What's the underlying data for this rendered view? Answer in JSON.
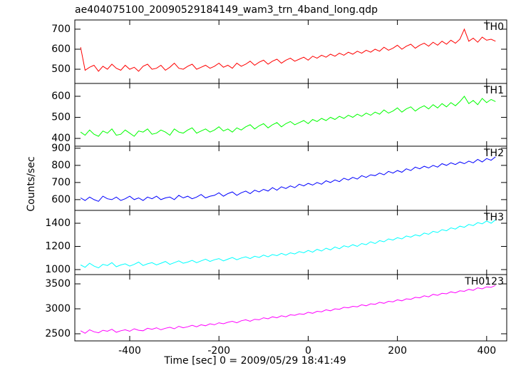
{
  "chart_data": {
    "type": "line",
    "title": "ae404075100_20090529184149_wam3_trn_4band_long.qdp",
    "xlabel": "Time [sec] 0 = 2009/05/29 18:41:49",
    "ylabel": "Counts/sec",
    "xlim": [
      -523,
      445
    ],
    "xticks": [
      -400,
      -200,
      0,
      200,
      400
    ],
    "x": [
      -510,
      -500,
      -490,
      -480,
      -470,
      -460,
      -450,
      -440,
      -430,
      -420,
      -410,
      -400,
      -390,
      -380,
      -370,
      -360,
      -350,
      -340,
      -330,
      -320,
      -310,
      -300,
      -290,
      -280,
      -270,
      -260,
      -250,
      -240,
      -230,
      -220,
      -210,
      -200,
      -190,
      -180,
      -170,
      -160,
      -150,
      -140,
      -130,
      -120,
      -110,
      -100,
      -90,
      -80,
      -70,
      -60,
      -50,
      -40,
      -30,
      -20,
      -10,
      0,
      10,
      20,
      30,
      40,
      50,
      60,
      70,
      80,
      90,
      100,
      110,
      120,
      130,
      140,
      150,
      160,
      170,
      180,
      190,
      200,
      210,
      220,
      230,
      240,
      250,
      260,
      270,
      280,
      290,
      300,
      310,
      320,
      330,
      340,
      350,
      360,
      370,
      380,
      390,
      400,
      410,
      420
    ],
    "series": [
      {
        "name": "TH0",
        "color": "#ff0000",
        "ylim": [
          429,
          746
        ],
        "yticks": [
          500,
          600,
          700
        ],
        "values": [
          610,
          495,
          510,
          520,
          490,
          515,
          500,
          525,
          505,
          495,
          520,
          500,
          510,
          490,
          515,
          525,
          500,
          505,
          520,
          495,
          510,
          530,
          505,
          500,
          515,
          525,
          500,
          510,
          520,
          505,
          515,
          530,
          510,
          520,
          505,
          530,
          515,
          525,
          540,
          520,
          535,
          545,
          525,
          540,
          550,
          530,
          545,
          555,
          540,
          550,
          560,
          545,
          565,
          555,
          570,
          560,
          575,
          565,
          580,
          570,
          585,
          575,
          590,
          580,
          595,
          585,
          600,
          590,
          610,
          595,
          605,
          620,
          600,
          615,
          625,
          605,
          620,
          630,
          615,
          635,
          620,
          640,
          625,
          645,
          630,
          650,
          700,
          640,
          655,
          635,
          660,
          645,
          650,
          640
        ]
      },
      {
        "name": "TH1",
        "color": "#00ff00",
        "ylim": [
          363,
          661
        ],
        "yticks": [
          400,
          500,
          600
        ],
        "values": [
          430,
          415,
          440,
          420,
          410,
          435,
          425,
          445,
          415,
          420,
          440,
          425,
          410,
          435,
          430,
          445,
          420,
          425,
          440,
          430,
          415,
          445,
          430,
          425,
          440,
          450,
          425,
          435,
          445,
          430,
          440,
          455,
          435,
          445,
          430,
          450,
          440,
          455,
          465,
          445,
          460,
          470,
          450,
          465,
          475,
          455,
          470,
          480,
          465,
          475,
          485,
          470,
          490,
          480,
          495,
          485,
          500,
          490,
          505,
          495,
          510,
          500,
          515,
          505,
          520,
          510,
          525,
          515,
          535,
          520,
          530,
          545,
          525,
          540,
          550,
          530,
          545,
          555,
          540,
          560,
          545,
          565,
          550,
          570,
          555,
          575,
          600,
          565,
          580,
          560,
          590,
          570,
          585,
          575
        ]
      },
      {
        "name": "TH2",
        "color": "#0000ff",
        "ylim": [
          537,
          912
        ],
        "yticks": [
          600,
          700,
          800,
          900
        ],
        "values": [
          610,
          595,
          615,
          600,
          590,
          620,
          605,
          600,
          615,
          595,
          605,
          620,
          600,
          610,
          595,
          615,
          605,
          620,
          600,
          610,
          615,
          600,
          625,
          610,
          620,
          605,
          615,
          630,
          610,
          620,
          625,
          640,
          620,
          635,
          645,
          625,
          640,
          650,
          635,
          655,
          645,
          660,
          650,
          670,
          655,
          675,
          665,
          680,
          670,
          690,
          680,
          695,
          685,
          700,
          690,
          710,
          700,
          715,
          705,
          725,
          715,
          730,
          720,
          740,
          730,
          745,
          740,
          755,
          745,
          765,
          755,
          770,
          760,
          780,
          770,
          790,
          780,
          795,
          785,
          800,
          790,
          810,
          800,
          815,
          805,
          820,
          810,
          825,
          815,
          835,
          820,
          840,
          830,
          850
        ]
      },
      {
        "name": "TH3",
        "color": "#00ffff",
        "ylim": [
          957,
          1511
        ],
        "yticks": [
          1000,
          1200,
          1400
        ],
        "values": [
          1040,
          1020,
          1055,
          1030,
          1015,
          1045,
          1035,
          1060,
          1025,
          1040,
          1050,
          1030,
          1045,
          1065,
          1035,
          1050,
          1060,
          1040,
          1055,
          1070,
          1045,
          1060,
          1075,
          1055,
          1065,
          1080,
          1060,
          1075,
          1090,
          1070,
          1085,
          1095,
          1075,
          1090,
          1105,
          1085,
          1100,
          1110,
          1095,
          1115,
          1105,
          1125,
          1110,
          1130,
          1120,
          1140,
          1125,
          1145,
          1135,
          1155,
          1145,
          1165,
          1150,
          1175,
          1160,
          1185,
          1170,
          1195,
          1180,
          1205,
          1195,
          1215,
          1200,
          1225,
          1215,
          1240,
          1225,
          1250,
          1240,
          1265,
          1255,
          1275,
          1265,
          1290,
          1280,
          1300,
          1290,
          1315,
          1305,
          1330,
          1320,
          1345,
          1335,
          1360,
          1350,
          1375,
          1365,
          1390,
          1380,
          1405,
          1395,
          1420,
          1400,
          1430
        ]
      },
      {
        "name": "TH0123",
        "color": "#ff00ff",
        "ylim": [
          2357,
          3686
        ],
        "yticks": [
          2500,
          3000,
          3500
        ],
        "values": [
          2560,
          2510,
          2580,
          2540,
          2520,
          2570,
          2550,
          2590,
          2530,
          2560,
          2580,
          2550,
          2600,
          2570,
          2560,
          2610,
          2590,
          2620,
          2580,
          2610,
          2630,
          2600,
          2650,
          2620,
          2640,
          2670,
          2640,
          2680,
          2660,
          2700,
          2680,
          2720,
          2700,
          2730,
          2750,
          2720,
          2760,
          2780,
          2750,
          2790,
          2780,
          2820,
          2800,
          2840,
          2820,
          2860,
          2840,
          2880,
          2870,
          2900,
          2890,
          2930,
          2910,
          2950,
          2940,
          2980,
          2960,
          3000,
          2990,
          3030,
          3020,
          3050,
          3040,
          3080,
          3060,
          3100,
          3090,
          3130,
          3110,
          3150,
          3140,
          3180,
          3160,
          3200,
          3190,
          3230,
          3220,
          3260,
          3240,
          3290,
          3270,
          3310,
          3300,
          3340,
          3320,
          3360,
          3350,
          3390,
          3370,
          3420,
          3400,
          3440,
          3430,
          3470
        ]
      }
    ]
  }
}
